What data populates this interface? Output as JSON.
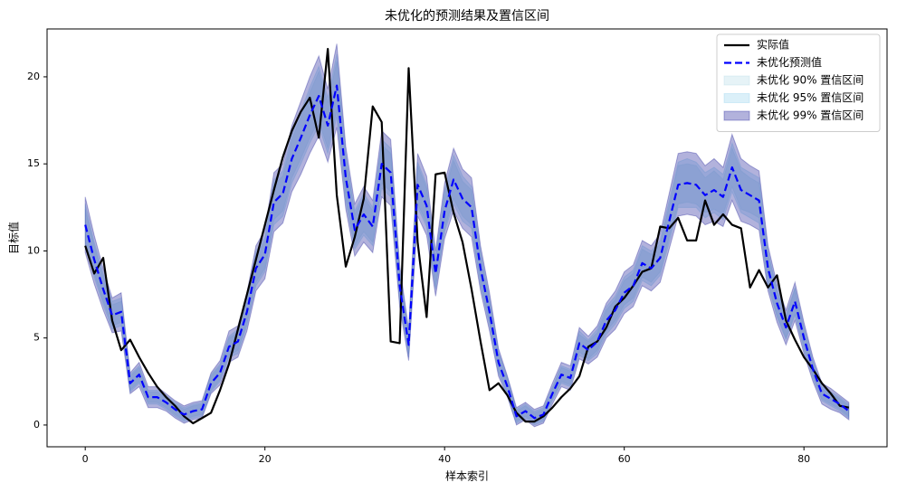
{
  "chart_data": {
    "type": "line",
    "title": "未优化的预测结果及置信区间",
    "xlabel": "样本索引",
    "ylabel": "目标值",
    "x": [
      0,
      1,
      2,
      3,
      4,
      5,
      6,
      7,
      8,
      9,
      10,
      11,
      12,
      13,
      14,
      15,
      16,
      17,
      18,
      19,
      20,
      21,
      22,
      23,
      24,
      25,
      26,
      27,
      28,
      29,
      30,
      31,
      32,
      33,
      34,
      35,
      36,
      37,
      38,
      39,
      40,
      41,
      42,
      43,
      44,
      45,
      46,
      47,
      48,
      49,
      50,
      51,
      52,
      53,
      54,
      55,
      56,
      57,
      58,
      59,
      60,
      61,
      62,
      63,
      64,
      65,
      66,
      67,
      68,
      69,
      70,
      71,
      72,
      73,
      74,
      75,
      76,
      77,
      78,
      79,
      80,
      81,
      82,
      83,
      84,
      85
    ],
    "xlim": [
      -4.25,
      89.25
    ],
    "xticks": [
      0,
      20,
      40,
      60,
      80
    ],
    "ylim": [
      -1.25,
      22.75
    ],
    "yticks": [
      0,
      5,
      10,
      15,
      20
    ],
    "legend": "upper right",
    "bands": [
      {
        "name": "未优化 90% 置信区间",
        "color": "#add8e6",
        "lower": [
          10.6,
          8.7,
          7.1,
          5.7,
          5.9,
          2.0,
          2.5,
          1.3,
          1.3,
          1.0,
          0.6,
          0.3,
          0.5,
          0.6,
          2.0,
          2.6,
          4.0,
          4.3,
          5.9,
          8.2,
          9.0,
          11.8,
          12.3,
          14.2,
          15.3,
          16.5,
          17.5,
          15.9,
          18.1,
          13.1,
          10.3,
          11.1,
          10.5,
          13.9,
          13.4,
          7.3,
          4.1,
          12.7,
          11.6,
          7.9,
          11.3,
          13.0,
          12.0,
          11.5,
          8.2,
          5.9,
          3.1,
          1.8,
          0.2,
          0.5,
          0.1,
          0.3,
          1.5,
          2.5,
          2.3,
          4.2,
          3.8,
          4.3,
          5.4,
          6.0,
          6.9,
          7.3,
          8.5,
          8.2,
          8.8,
          10.8,
          12.7,
          12.8,
          12.7,
          12.2,
          12.4,
          12.1,
          13.7,
          12.4,
          12.2,
          11.9,
          8.2,
          6.3,
          5.0,
          6.4,
          4.5,
          2.8,
          1.5,
          1.2,
          0.9,
          0.5
        ],
        "upper": [
          12.4,
          10.3,
          8.5,
          6.9,
          7.1,
          2.8,
          3.3,
          1.9,
          1.9,
          1.6,
          1.2,
          0.9,
          1.1,
          1.2,
          2.8,
          3.4,
          5.0,
          5.3,
          7.1,
          9.8,
          10.6,
          13.8,
          14.3,
          16.4,
          17.7,
          19.1,
          20.3,
          18.5,
          20.9,
          15.3,
          12.1,
          13.1,
          12.3,
          16.1,
          15.6,
          8.7,
          5.1,
          14.9,
          13.6,
          9.5,
          13.3,
          15.2,
          14.0,
          13.5,
          9.8,
          7.1,
          4.1,
          2.6,
          0.8,
          1.1,
          0.7,
          0.9,
          2.1,
          3.3,
          3.1,
          5.2,
          4.8,
          5.3,
          6.6,
          7.2,
          8.3,
          8.7,
          10.1,
          9.8,
          10.4,
          12.6,
          14.9,
          15.0,
          14.9,
          14.2,
          14.6,
          14.1,
          15.9,
          14.6,
          14.2,
          13.9,
          9.8,
          7.7,
          6.2,
          7.8,
          5.5,
          3.6,
          2.1,
          1.8,
          1.5,
          1.1
        ]
      },
      {
        "name": "未优化 95% 置信区间",
        "color": "#87ceeb",
        "lower": [
          10.3,
          8.5,
          6.9,
          5.5,
          5.7,
          1.9,
          2.4,
          1.2,
          1.2,
          0.9,
          0.5,
          0.2,
          0.4,
          0.5,
          1.9,
          2.5,
          3.9,
          4.1,
          5.7,
          8.0,
          8.8,
          11.5,
          12.0,
          13.9,
          15.0,
          16.2,
          17.2,
          15.6,
          17.7,
          12.8,
          10.1,
          10.9,
          10.3,
          13.6,
          13.1,
          7.1,
          3.9,
          12.5,
          11.4,
          7.8,
          11.1,
          12.7,
          11.7,
          11.3,
          8.0,
          5.7,
          3.0,
          1.7,
          0.1,
          0.4,
          0.0,
          0.2,
          1.4,
          2.4,
          2.2,
          4.0,
          3.7,
          4.1,
          5.2,
          5.8,
          6.7,
          7.1,
          8.3,
          8.0,
          8.6,
          10.5,
          12.5,
          12.5,
          12.5,
          11.9,
          12.2,
          11.8,
          13.4,
          12.2,
          11.9,
          11.6,
          8.0,
          6.2,
          4.9,
          6.3,
          4.3,
          2.7,
          1.4,
          1.1,
          0.8,
          0.4
        ],
        "upper": [
          12.7,
          10.5,
          8.7,
          7.1,
          7.3,
          2.9,
          3.4,
          2.0,
          2.0,
          1.7,
          1.3,
          1.0,
          1.2,
          1.3,
          2.9,
          3.5,
          5.1,
          5.5,
          7.3,
          10.0,
          10.8,
          14.1,
          14.6,
          16.7,
          18.0,
          19.4,
          20.6,
          18.8,
          21.3,
          15.6,
          12.3,
          13.3,
          12.5,
          16.4,
          15.9,
          8.9,
          5.3,
          15.1,
          13.8,
          9.6,
          13.5,
          15.5,
          14.3,
          13.7,
          10.0,
          7.3,
          4.2,
          2.7,
          0.9,
          1.2,
          0.8,
          1.0,
          2.2,
          3.4,
          3.2,
          5.4,
          4.9,
          5.5,
          6.8,
          7.4,
          8.5,
          8.9,
          10.3,
          10.0,
          10.6,
          12.9,
          15.1,
          15.3,
          15.1,
          14.5,
          14.8,
          14.4,
          16.2,
          14.8,
          14.5,
          14.2,
          10.0,
          7.8,
          6.3,
          7.9,
          5.7,
          3.7,
          2.2,
          1.9,
          1.6,
          1.2
        ]
      },
      {
        "name": "未优化 99% 置信区间",
        "color": "#00008b",
        "lower": [
          9.9,
          8.1,
          6.6,
          5.3,
          5.4,
          1.8,
          2.2,
          1.0,
          1.0,
          0.8,
          0.4,
          0.1,
          0.3,
          0.4,
          1.8,
          2.3,
          3.6,
          3.9,
          5.4,
          7.7,
          8.4,
          11.1,
          11.6,
          13.4,
          14.4,
          15.6,
          16.6,
          15.1,
          17.1,
          12.4,
          9.7,
          10.5,
          9.9,
          13.1,
          12.6,
          6.8,
          3.7,
          12.0,
          10.9,
          7.4,
          10.7,
          12.3,
          11.3,
          10.8,
          7.7,
          5.4,
          2.8,
          1.6,
          0.0,
          0.3,
          -0.1,
          0.1,
          1.2,
          2.2,
          2.0,
          3.8,
          3.5,
          3.9,
          5.0,
          5.5,
          6.4,
          6.8,
          8.0,
          7.7,
          8.2,
          10.1,
          12.0,
          12.1,
          12.0,
          11.5,
          11.7,
          11.4,
          12.9,
          11.7,
          11.5,
          11.2,
          7.7,
          5.9,
          4.6,
          6.0,
          4.1,
          2.5,
          1.2,
          0.9,
          0.7,
          0.3
        ],
        "upper": [
          13.1,
          10.9,
          9.0,
          7.3,
          7.6,
          3.0,
          3.6,
          2.2,
          2.2,
          1.8,
          1.4,
          1.1,
          1.3,
          1.4,
          3.0,
          3.7,
          5.4,
          5.7,
          7.6,
          10.3,
          11.2,
          14.5,
          15.0,
          17.2,
          18.6,
          20.0,
          21.2,
          19.3,
          21.9,
          16.0,
          12.7,
          13.7,
          12.9,
          16.9,
          16.4,
          9.2,
          5.5,
          15.6,
          14.3,
          10.0,
          13.9,
          15.9,
          14.7,
          14.2,
          10.3,
          7.6,
          4.4,
          2.8,
          1.0,
          1.3,
          0.9,
          1.1,
          2.4,
          3.6,
          3.4,
          5.6,
          5.1,
          5.7,
          7.0,
          7.7,
          8.8,
          9.2,
          10.6,
          10.3,
          11.0,
          13.3,
          15.6,
          15.7,
          15.6,
          14.9,
          15.3,
          14.8,
          16.7,
          15.3,
          14.9,
          14.6,
          10.3,
          8.1,
          6.6,
          8.2,
          5.9,
          3.9,
          2.4,
          2.1,
          1.7,
          1.3
        ]
      }
    ],
    "series": [
      {
        "name": "实际值",
        "color": "#000000",
        "dash": false,
        "values": [
          10.3,
          8.7,
          9.6,
          6.0,
          4.3,
          4.9,
          3.9,
          3.0,
          2.2,
          1.6,
          1.1,
          0.5,
          0.1,
          0.4,
          0.7,
          2.0,
          3.5,
          5.5,
          7.5,
          9.5,
          11.5,
          13.5,
          15.4,
          16.9,
          18.0,
          18.8,
          16.5,
          21.6,
          13.2,
          9.1,
          10.8,
          13.0,
          18.3,
          17.4,
          4.8,
          4.7,
          20.5,
          10.5,
          6.2,
          14.4,
          14.5,
          12.2,
          10.5,
          7.8,
          4.8,
          2.0,
          2.4,
          1.7,
          0.7,
          0.2,
          0.2,
          0.5,
          1.0,
          1.6,
          2.1,
          2.8,
          4.5,
          4.8,
          5.6,
          6.8,
          7.3,
          8.0,
          8.8,
          9.0,
          11.4,
          11.3,
          11.9,
          10.6,
          10.6,
          12.9,
          11.5,
          12.1,
          11.5,
          11.3,
          7.9,
          8.9,
          7.9,
          8.6,
          6.0,
          4.9,
          3.9,
          3.2,
          2.4,
          1.8,
          1.1,
          1.0
        ]
      },
      {
        "name": "未优化预测值",
        "color": "#0000ff",
        "dash": true,
        "values": [
          11.5,
          9.5,
          7.8,
          6.3,
          6.5,
          2.4,
          2.9,
          1.6,
          1.6,
          1.3,
          0.9,
          0.6,
          0.8,
          0.9,
          2.4,
          3.0,
          4.5,
          4.8,
          6.5,
          9.0,
          9.8,
          12.8,
          13.3,
          15.3,
          16.5,
          17.8,
          18.9,
          17.2,
          19.5,
          14.2,
          11.2,
          12.1,
          11.4,
          15.0,
          14.5,
          8.0,
          4.6,
          13.8,
          12.6,
          8.7,
          12.3,
          14.1,
          13.0,
          12.5,
          9.0,
          6.5,
          3.6,
          2.2,
          0.5,
          0.8,
          0.4,
          0.6,
          1.8,
          2.9,
          2.7,
          4.7,
          4.3,
          4.8,
          6.0,
          6.6,
          7.6,
          8.0,
          9.3,
          9.0,
          9.6,
          11.7,
          13.8,
          13.9,
          13.8,
          13.2,
          13.5,
          13.1,
          14.8,
          13.5,
          13.2,
          12.9,
          9.0,
          7.0,
          5.6,
          7.1,
          5.0,
          3.2,
          1.8,
          1.5,
          1.2,
          0.8
        ]
      }
    ]
  }
}
